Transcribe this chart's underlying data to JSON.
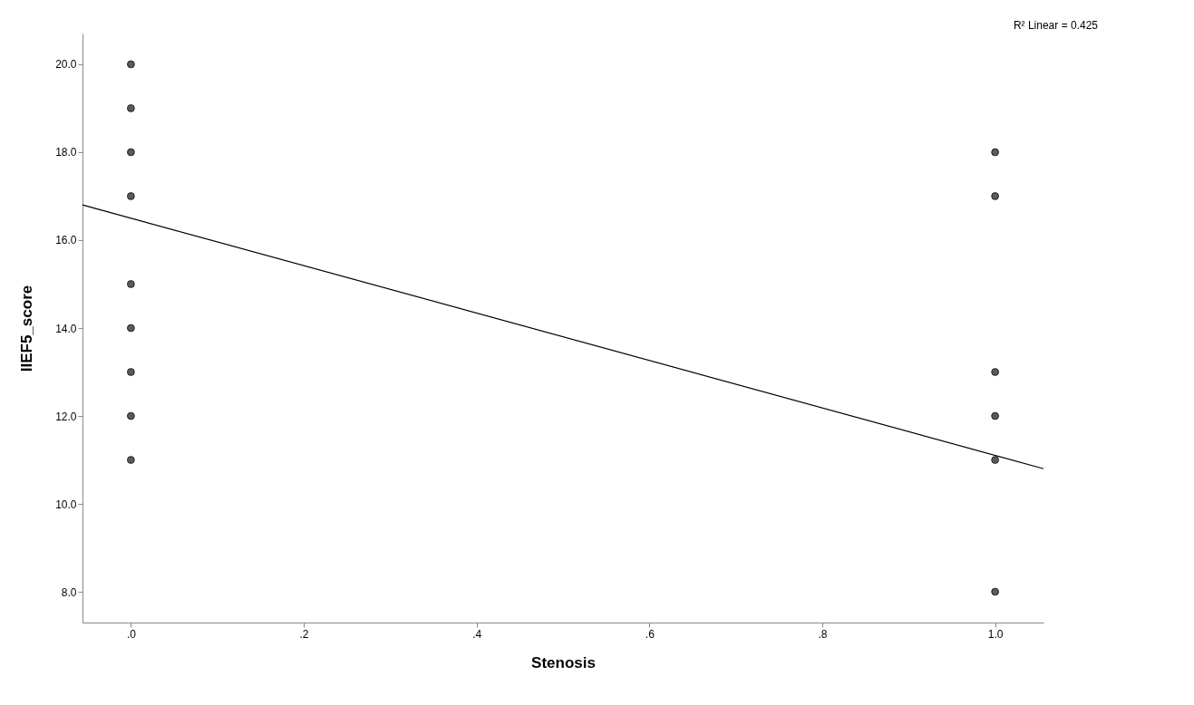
{
  "chart_data": {
    "type": "scatter",
    "xlabel": "Stenosis",
    "ylabel": "IIEF5_score",
    "annotations": [
      "R² Linear = 0.425"
    ],
    "series": [
      {
        "type": "scatter",
        "color": "#5a5a5a",
        "marker": "circle",
        "x": [
          0,
          0,
          0,
          0,
          0,
          0,
          0,
          0,
          0,
          1,
          1,
          1,
          1,
          1,
          1
        ],
        "values": [
          20,
          19,
          18,
          17,
          15,
          14,
          13,
          12,
          11,
          18,
          17,
          13,
          12,
          11,
          8
        ]
      },
      {
        "type": "line",
        "color": "#000000",
        "x": [
          -0.056,
          1.056
        ],
        "values": [
          16.8,
          10.8
        ]
      }
    ],
    "xlim": [
      -0.056,
      1.056
    ],
    "xticks": [
      {
        "value": 0,
        "label": ".0"
      },
      {
        "value": 0.2,
        "label": ".2"
      },
      {
        "value": 0.4,
        "label": ".4"
      },
      {
        "value": 0.6,
        "label": ".6"
      },
      {
        "value": 0.8,
        "label": ".8"
      },
      {
        "value": 1,
        "label": "1.0"
      }
    ],
    "ylim": [
      7.3,
      20.7
    ],
    "yticks": [
      {
        "value": 8,
        "label": "8.0"
      },
      {
        "value": 10,
        "label": "10.0"
      },
      {
        "value": 12,
        "label": "12.0"
      },
      {
        "value": 14,
        "label": "14.0"
      },
      {
        "value": 16,
        "label": "16.0"
      },
      {
        "value": 18,
        "label": "18.0"
      },
      {
        "value": 20,
        "label": "20.0"
      }
    ],
    "grid": false
  }
}
